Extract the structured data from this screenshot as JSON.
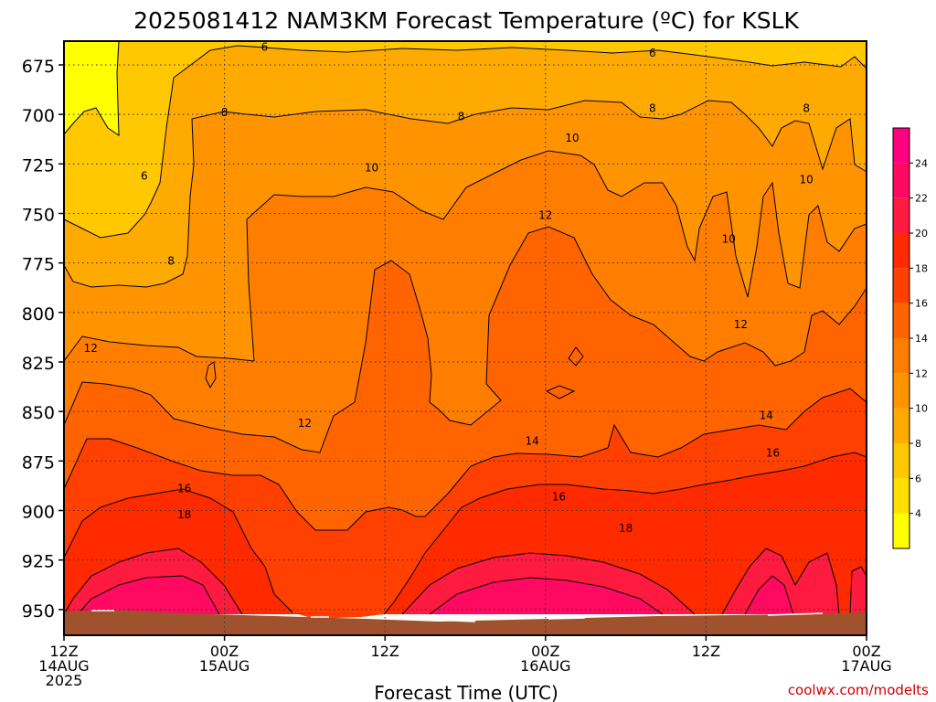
{
  "chart_data": {
    "type": "heatmap",
    "title": "2025081412 NAM3KM Forecast Temperature (ºC) for KSLK",
    "xlabel": "Forecast Time (UTC)",
    "ylabel": "",
    "credit": "coolwx.com/modelts",
    "x_ticks": [
      {
        "hour": 12,
        "line1": "12Z",
        "line2": "14AUG",
        "line3": "2025"
      },
      {
        "hour": 24,
        "line1": "00Z",
        "line2": "15AUG",
        "line3": ""
      },
      {
        "hour": 36,
        "line1": "12Z",
        "line2": "",
        "line3": ""
      },
      {
        "hour": 48,
        "line1": "00Z",
        "line2": "16AUG",
        "line3": ""
      },
      {
        "hour": 60,
        "line1": "12Z",
        "line2": "",
        "line3": ""
      },
      {
        "hour": 72,
        "line1": "00Z",
        "line2": "17AUG",
        "line3": ""
      }
    ],
    "x_range_hours": [
      12,
      72
    ],
    "y_ticks": [
      675,
      700,
      725,
      750,
      775,
      800,
      825,
      850,
      875,
      900,
      925,
      950
    ],
    "y_range_hpa": [
      663,
      963
    ],
    "grid": true,
    "colorbar": {
      "labels": [
        4,
        6,
        8,
        10,
        12,
        14,
        16,
        18,
        20,
        22,
        24
      ],
      "bins": [
        {
          "min": 2,
          "max": 4,
          "color": "#ffff00"
        },
        {
          "min": 4,
          "max": 6,
          "color": "#ffe000"
        },
        {
          "min": 6,
          "max": 8,
          "color": "#ffc800"
        },
        {
          "min": 8,
          "max": 10,
          "color": "#ffaa00"
        },
        {
          "min": 10,
          "max": 12,
          "color": "#ff9400"
        },
        {
          "min": 12,
          "max": 14,
          "color": "#ff7e00"
        },
        {
          "min": 14,
          "max": 16,
          "color": "#ff6400"
        },
        {
          "min": 16,
          "max": 18,
          "color": "#ff4000"
        },
        {
          "min": 18,
          "max": 20,
          "color": "#ff2a00"
        },
        {
          "min": 20,
          "max": 22,
          "color": "#ff1a40"
        },
        {
          "min": 22,
          "max": 24,
          "color": "#ff0a60"
        },
        {
          "min": 24,
          "max": 26,
          "color": "#ff0080"
        }
      ]
    },
    "ground_color": "#a0522d",
    "contour_labels": [
      {
        "value": "6",
        "hour": 27,
        "p": 666
      },
      {
        "value": "6",
        "hour": 56,
        "p": 669
      },
      {
        "value": "6",
        "hour": 18,
        "p": 731
      },
      {
        "value": "8",
        "hour": 24,
        "p": 699
      },
      {
        "value": "8",
        "hour": 41.7,
        "p": 701
      },
      {
        "value": "8",
        "hour": 56,
        "p": 697
      },
      {
        "value": "8",
        "hour": 67.5,
        "p": 697
      },
      {
        "value": "8",
        "hour": 20,
        "p": 774
      },
      {
        "value": "10",
        "hour": 35,
        "p": 727
      },
      {
        "value": "10",
        "hour": 50,
        "p": 712
      },
      {
        "value": "10",
        "hour": 61.7,
        "p": 763
      },
      {
        "value": "10",
        "hour": 67.5,
        "p": 733
      },
      {
        "value": "12",
        "hour": 14,
        "p": 818
      },
      {
        "value": "12",
        "hour": 30,
        "p": 856
      },
      {
        "value": "12",
        "hour": 48,
        "p": 751
      },
      {
        "value": "12",
        "hour": 62.6,
        "p": 806
      },
      {
        "value": "14",
        "hour": 47,
        "p": 865
      },
      {
        "value": "14",
        "hour": 64.5,
        "p": 852
      },
      {
        "value": "16",
        "hour": 21,
        "p": 889
      },
      {
        "value": "16",
        "hour": 49,
        "p": 893
      },
      {
        "value": "16",
        "hour": 65,
        "p": 871
      },
      {
        "value": "18",
        "hour": 21,
        "p": 902
      },
      {
        "value": "18",
        "hour": 54,
        "p": 909
      }
    ]
  }
}
